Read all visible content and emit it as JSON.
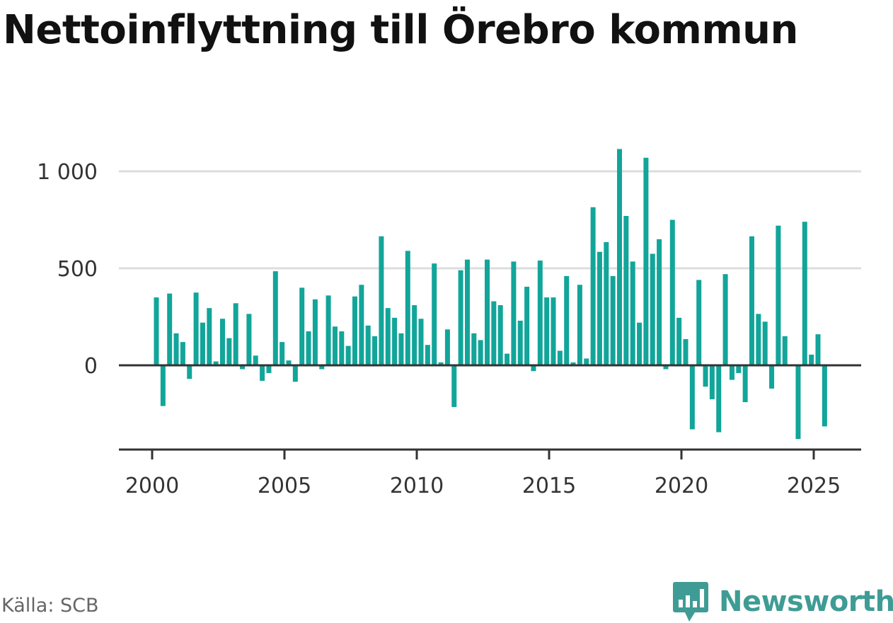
{
  "title": "Nettoinflyttning till Örebro kommun",
  "source": "Källa: SCB",
  "brand": {
    "name": "Newsworthy",
    "icon": "newsworthy-logo-icon"
  },
  "colors": {
    "bar": "#12a59a",
    "brand": "#3f9c94",
    "grid": "#dddddd",
    "axis": "#333333"
  },
  "chart_data": {
    "type": "bar",
    "title": "Nettoinflyttning till Örebro kommun",
    "xlabel": "",
    "ylabel": "",
    "x_start": 2000,
    "x_step": 0.25,
    "values": [
      350,
      -210,
      370,
      165,
      120,
      -70,
      375,
      220,
      295,
      20,
      240,
      140,
      320,
      -20,
      265,
      50,
      -80,
      -40,
      485,
      120,
      25,
      -85,
      400,
      175,
      340,
      -20,
      360,
      200,
      175,
      100,
      355,
      415,
      205,
      150,
      665,
      295,
      245,
      165,
      590,
      310,
      240,
      105,
      525,
      15,
      185,
      -215,
      490,
      545,
      165,
      130,
      545,
      330,
      310,
      60,
      535,
      230,
      405,
      -30,
      540,
      350,
      350,
      75,
      460,
      15,
      415,
      35,
      815,
      585,
      635,
      460,
      1115,
      770,
      535,
      220,
      1070,
      575,
      650,
      -20,
      750,
      245,
      135,
      -330,
      440,
      -110,
      -175,
      -345,
      470,
      -75,
      -40,
      -190,
      665,
      265,
      225,
      -120,
      720,
      150,
      0,
      -380,
      740,
      55,
      160,
      -315
    ],
    "ylim": [
      -430,
      1120
    ],
    "yticks": [
      0,
      500,
      1000
    ],
    "ytick_labels": [
      "0",
      "500",
      "1 000"
    ],
    "xticks": [
      2000,
      2005,
      2010,
      2015,
      2020,
      2025
    ],
    "xtick_labels": [
      "2000",
      "2005",
      "2010",
      "2015",
      "2020",
      "2025"
    ],
    "grid": true,
    "legend": "none"
  }
}
